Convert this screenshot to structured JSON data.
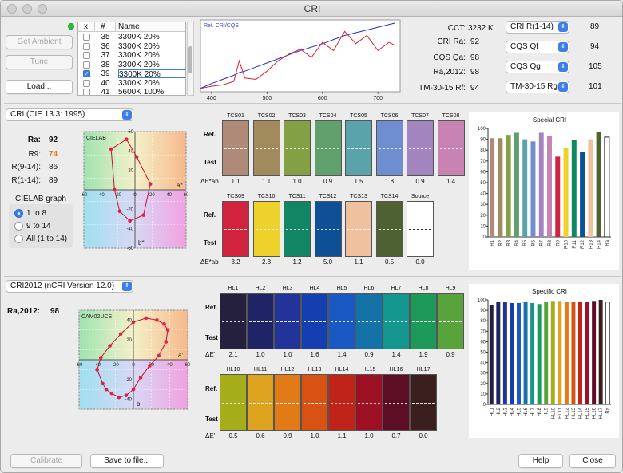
{
  "window": {
    "title": "CRI"
  },
  "left_buttons": {
    "get_ambient": "Get Ambient",
    "tune": "Tune",
    "load": "Load..."
  },
  "sample_table": {
    "headers": [
      "x",
      "#",
      "Name"
    ],
    "rows": [
      {
        "num": "35",
        "name": "3300K 20%",
        "checked": false
      },
      {
        "num": "36",
        "name": "3300K 20%",
        "checked": false
      },
      {
        "num": "37",
        "name": "3300K 20%",
        "checked": false
      },
      {
        "num": "38",
        "name": "3300K 20%",
        "checked": false
      },
      {
        "num": "39",
        "name": "3300K 20%",
        "checked": true
      },
      {
        "num": "40",
        "name": "3300K 20%",
        "checked": false
      },
      {
        "num": "41",
        "name": "5600K 100%",
        "checked": false
      }
    ]
  },
  "spectrum": {
    "legend": "Ref. CRI/CQS",
    "xticks": [
      "400",
      "500",
      "600",
      "700"
    ]
  },
  "metrics": {
    "cct_label": "CCT:",
    "cct_value": "3232 K",
    "cri_ra_label": "CRI Ra:",
    "cri_ra_value": "92",
    "cqs_qa_label": "CQS Qa:",
    "cqs_qa_value": "98",
    "ra2012_label": "Ra,2012:",
    "ra2012_value": "98",
    "tm30_label": "TM-30-15 Rf:",
    "tm30_value": "94"
  },
  "right_selects": [
    {
      "label": "CRI R(1-14)",
      "value": "89"
    },
    {
      "label": "CQS Qf",
      "value": "94"
    },
    {
      "label": "CQS Qg",
      "value": "105"
    },
    {
      "label": "TM-30-15 Rg",
      "value": "101"
    }
  ],
  "cri_section": {
    "method": "CRI (CIE 13.3: 1995)",
    "ra_label": "Ra:",
    "ra_value": "92",
    "r9_label": "R9:",
    "r9_value": "74",
    "r914_label": "R(9-14):",
    "r914_value": "86",
    "r114_label": "R(1-14):",
    "r114_value": "89",
    "graph_label": "CIELAB graph",
    "radio_options": [
      "1 to 8",
      "9 to 14",
      "All (1 to 14)"
    ],
    "plot_title": "CIELAB",
    "axis_a": "a*",
    "axis_b": "b*",
    "ticks_x": [
      "-60",
      "-40",
      "-20",
      "0",
      "20",
      "40",
      "60"
    ],
    "ticks_y": [
      "60",
      "40",
      "20",
      "-20",
      "-40",
      "-60"
    ],
    "ref_label": "Ref.",
    "test_label": "Test",
    "de_label": "ΔE*ab",
    "samples_row1": [
      {
        "name": "TCS01",
        "de": "1.1",
        "color": "#b08a78"
      },
      {
        "name": "TCS02",
        "de": "1.1",
        "color": "#a18b5d"
      },
      {
        "name": "TCS03",
        "de": "1.0",
        "color": "#84a045"
      },
      {
        "name": "TCS04",
        "de": "0.9",
        "color": "#5fa06c"
      },
      {
        "name": "TCS05",
        "de": "1.5",
        "color": "#5ba3ab"
      },
      {
        "name": "TCS06",
        "de": "1.8",
        "color": "#6f8ecf"
      },
      {
        "name": "TCS07",
        "de": "0.9",
        "color": "#a285bf"
      },
      {
        "name": "TCS08",
        "de": "1.4",
        "color": "#c883b3"
      }
    ],
    "samples_row2": [
      {
        "name": "TCS09",
        "de": "3.2",
        "color": "#d1233e"
      },
      {
        "name": "TCS10",
        "de": "2.3",
        "color": "#eed12a"
      },
      {
        "name": "TCS11",
        "de": "1.2",
        "color": "#128664"
      },
      {
        "name": "TCS12",
        "de": "5.0",
        "color": "#0f4f95"
      },
      {
        "name": "TCS13",
        "de": "1.1",
        "color": "#f0c19f"
      },
      {
        "name": "TCS14",
        "de": "0.5",
        "color": "#4d6133"
      },
      {
        "name": "Source",
        "de": "0.0",
        "color": "#ffffff"
      }
    ],
    "bar_title": "Special CRI"
  },
  "cri2012_section": {
    "method": "CRI2012 (nCRI Version 12.0)",
    "ra_label": "Ra,2012:",
    "ra_value": "98",
    "plot_title": "CAM02UCS",
    "axis_a": "a'",
    "axis_b": "b'",
    "ticks_x": [
      "-60",
      "-40",
      "-20",
      "0",
      "20",
      "40",
      "60"
    ],
    "ticks_y": [
      "40",
      "20",
      "-20",
      "-40"
    ],
    "ref_label": "Ref.",
    "test_label": "Test",
    "de_label": "ΔE'",
    "samples_row1": [
      {
        "name": "HL1",
        "de": "2.1",
        "color": "#26203f"
      },
      {
        "name": "HL2",
        "de": "1.0",
        "color": "#1f2467"
      },
      {
        "name": "HL3",
        "de": "1.0",
        "color": "#22339a"
      },
      {
        "name": "HL4",
        "de": "1.6",
        "color": "#153fb0"
      },
      {
        "name": "HL5",
        "de": "1.4",
        "color": "#1a58c4"
      },
      {
        "name": "HL6",
        "de": "0.9",
        "color": "#1472a8"
      },
      {
        "name": "HL7",
        "de": "1.4",
        "color": "#13968e"
      },
      {
        "name": "HL8",
        "de": "1.9",
        "color": "#1d9a5a"
      },
      {
        "name": "HL9",
        "de": "0.9",
        "color": "#58a33c"
      }
    ],
    "samples_row2": [
      {
        "name": "HL10",
        "de": "0.5",
        "color": "#a5ad1a"
      },
      {
        "name": "HL11",
        "de": "0.6",
        "color": "#dea31e"
      },
      {
        "name": "HL12",
        "de": "0.9",
        "color": "#e07b18"
      },
      {
        "name": "HL13",
        "de": "1.0",
        "color": "#d85214"
      },
      {
        "name": "HL14",
        "de": "1.1",
        "color": "#c02318"
      },
      {
        "name": "HL15",
        "de": "1.0",
        "color": "#9c1124"
      },
      {
        "name": "HL16",
        "de": "0.7",
        "color": "#5d0e24"
      },
      {
        "name": "HL17",
        "de": "0.0",
        "color": "#3b1f1e"
      }
    ],
    "bar_title": "Specific CRI"
  },
  "bottom_buttons": {
    "calibrate": "Calibrate",
    "save": "Save to file...",
    "help": "Help",
    "close": "Close"
  },
  "chart_data": [
    {
      "type": "line",
      "legend": [
        "Ref. CRI/CQS"
      ],
      "x": [
        380,
        400,
        420,
        440,
        450,
        460,
        480,
        500,
        520,
        540,
        560,
        580,
        600,
        620,
        640,
        660,
        680,
        700,
        720,
        730
      ],
      "series": [
        {
          "values": [
            0.05,
            0.12,
            0.18,
            0.24,
            0.28,
            0.3,
            0.36,
            0.42,
            0.48,
            0.54,
            0.6,
            0.65,
            0.7,
            0.76,
            0.82,
            0.86,
            0.9,
            0.94,
            0.98,
            1.0
          ]
        },
        {
          "values": [
            0.05,
            0.08,
            0.1,
            0.15,
            0.45,
            0.2,
            0.18,
            0.3,
            0.45,
            0.55,
            0.62,
            0.5,
            0.72,
            0.6,
            0.88,
            0.7,
            0.82,
            0.6,
            0.72,
            0.68
          ]
        }
      ],
      "xlim": [
        380,
        740
      ]
    },
    {
      "type": "line",
      "title": "CIELAB",
      "xlabel": "a*",
      "ylabel": "b*",
      "x": [
        -28,
        -10,
        2,
        18,
        10,
        -6,
        -18,
        -24
      ],
      "y": [
        42,
        52,
        34,
        6,
        -26,
        -32,
        -22,
        0
      ],
      "xlim": [
        -60,
        60
      ],
      "ylim": [
        -60,
        60
      ]
    },
    {
      "type": "bar",
      "title": "Special CRI",
      "categories": [
        "R1",
        "R2",
        "R3",
        "R4",
        "R5",
        "R6",
        "R7",
        "R8",
        "R9",
        "R10",
        "R11",
        "R12",
        "R13",
        "R14",
        "Ra"
      ],
      "values": [
        91,
        91,
        94,
        96,
        90,
        88,
        96,
        93,
        74,
        82,
        89,
        78,
        90,
        97,
        92
      ],
      "colors": [
        "#b08a78",
        "#a18b5d",
        "#84a045",
        "#5fa06c",
        "#5ba3ab",
        "#6f8ecf",
        "#a285bf",
        "#c883b3",
        "#d1233e",
        "#eed12a",
        "#128664",
        "#0f4f95",
        "#f0c19f",
        "#4d6133",
        "#ffffff"
      ],
      "ylim": [
        0,
        100
      ],
      "yticks": [
        "0",
        "10",
        "20",
        "30",
        "40",
        "50",
        "60",
        "70",
        "80",
        "90",
        "100"
      ]
    },
    {
      "type": "line",
      "title": "CAM02UCS",
      "xlabel": "a'",
      "ylabel": "b'",
      "x": [
        -40,
        -34,
        -30,
        -24,
        -16,
        -8,
        0,
        8,
        18,
        28,
        36,
        38,
        34,
        26,
        14,
        0,
        -14,
        -26,
        -36,
        -40
      ],
      "y": [
        -10,
        -24,
        -30,
        -34,
        -38,
        -36,
        -30,
        -18,
        -6,
        4,
        18,
        30,
        36,
        40,
        42,
        38,
        26,
        14,
        2,
        -10
      ],
      "xlim": [
        -60,
        60
      ],
      "ylim": [
        -50,
        50
      ]
    },
    {
      "type": "bar",
      "title": "Specific CRI",
      "categories": [
        "HL1",
        "HL2",
        "HL3",
        "HL4",
        "HL5",
        "HL6",
        "HL7",
        "HL8",
        "HL9",
        "HL10",
        "HL11",
        "HL12",
        "HL13",
        "HL14",
        "HL15",
        "HL16",
        "HL17",
        "Ra"
      ],
      "values": [
        95,
        98,
        98,
        97,
        97,
        98,
        97,
        96,
        98,
        99,
        99,
        98,
        98,
        98,
        98,
        99,
        100,
        98
      ],
      "colors": [
        "#26203f",
        "#1f2467",
        "#22339a",
        "#153fb0",
        "#1a58c4",
        "#1472a8",
        "#13968e",
        "#1d9a5a",
        "#58a33c",
        "#a5ad1a",
        "#dea31e",
        "#e07b18",
        "#d85214",
        "#c02318",
        "#9c1124",
        "#5d0e24",
        "#3b1f1e",
        "#ffffff"
      ],
      "ylim": [
        0,
        100
      ],
      "yticks": [
        "0",
        "10",
        "20",
        "30",
        "40",
        "50",
        "60",
        "70",
        "80",
        "90",
        "100"
      ]
    }
  ]
}
